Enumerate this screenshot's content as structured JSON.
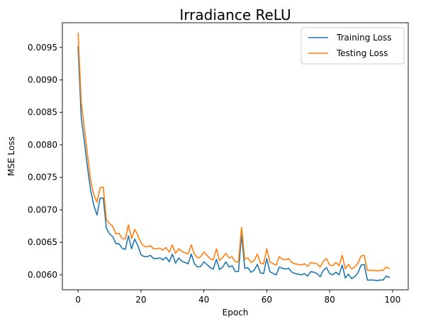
{
  "chart_data": {
    "type": "line",
    "title": "Irradiance ReLU",
    "xlabel": "Epoch",
    "ylabel": "MSE Loss",
    "xlim": [
      -5,
      105
    ],
    "ylim": [
      0.00577,
      0.00988
    ],
    "xticks": [
      0,
      20,
      40,
      60,
      80,
      100
    ],
    "xtick_labels": [
      "0",
      "20",
      "40",
      "60",
      "80",
      "100"
    ],
    "yticks": [
      0.006,
      0.0065,
      0.007,
      0.0075,
      0.008,
      0.0085,
      0.009,
      0.0095
    ],
    "ytick_labels": [
      "0.0060",
      "0.0065",
      "0.0070",
      "0.0075",
      "0.0080",
      "0.0085",
      "0.0090",
      "0.0095"
    ],
    "grid": false,
    "legend_position": "top-right",
    "series": [
      {
        "name": "Training Loss",
        "color": "#1f77b4",
        "x": [
          0,
          1,
          2,
          3,
          4,
          5,
          6,
          7,
          8,
          9,
          10,
          11,
          12,
          13,
          14,
          15,
          16,
          17,
          18,
          19,
          20,
          21,
          22,
          23,
          24,
          25,
          26,
          27,
          28,
          29,
          30,
          31,
          32,
          33,
          34,
          35,
          36,
          37,
          38,
          39,
          40,
          41,
          42,
          43,
          44,
          45,
          46,
          47,
          48,
          49,
          50,
          51,
          52,
          53,
          54,
          55,
          56,
          57,
          58,
          59,
          60,
          61,
          62,
          63,
          64,
          65,
          66,
          67,
          68,
          69,
          70,
          71,
          72,
          73,
          74,
          75,
          76,
          77,
          78,
          79,
          80,
          81,
          82,
          83,
          84,
          85,
          86,
          87,
          88,
          89,
          90,
          91,
          92,
          93,
          94,
          95,
          96,
          97,
          98,
          99
        ],
        "y": [
          0.00951,
          0.00842,
          0.00805,
          0.00765,
          0.0073,
          0.00707,
          0.00692,
          0.00718,
          0.00718,
          0.00672,
          0.00663,
          0.00659,
          0.00648,
          0.00648,
          0.00641,
          0.00639,
          0.0066,
          0.0064,
          0.00655,
          0.00645,
          0.00631,
          0.00628,
          0.00628,
          0.0063,
          0.00625,
          0.00625,
          0.00626,
          0.00623,
          0.00627,
          0.0062,
          0.00632,
          0.00618,
          0.00626,
          0.00621,
          0.00619,
          0.00617,
          0.00632,
          0.00617,
          0.00612,
          0.00613,
          0.0062,
          0.00616,
          0.00611,
          0.00609,
          0.00624,
          0.00608,
          0.00612,
          0.0062,
          0.00612,
          0.00614,
          0.00605,
          0.00605,
          0.00662,
          0.0061,
          0.00611,
          0.00604,
          0.00607,
          0.00616,
          0.00603,
          0.00602,
          0.00625,
          0.00605,
          0.00602,
          0.006,
          0.00612,
          0.0061,
          0.00609,
          0.0061,
          0.00604,
          0.00602,
          0.00601,
          0.006,
          0.00602,
          0.00598,
          0.00605,
          0.00604,
          0.00602,
          0.00597,
          0.00607,
          0.00611,
          0.00602,
          0.006,
          0.00604,
          0.006,
          0.00615,
          0.00595,
          0.00601,
          0.00594,
          0.00597,
          0.00603,
          0.00615,
          0.00616,
          0.00592,
          0.00592,
          0.00592,
          0.00591,
          0.00592,
          0.00592,
          0.00598,
          0.00596
        ]
      },
      {
        "name": "Testing Loss",
        "color": "#ff7f0e",
        "x": [
          0,
          1,
          2,
          3,
          4,
          5,
          6,
          7,
          8,
          9,
          10,
          11,
          12,
          13,
          14,
          15,
          16,
          17,
          18,
          19,
          20,
          21,
          22,
          23,
          24,
          25,
          26,
          27,
          28,
          29,
          30,
          31,
          32,
          33,
          34,
          35,
          36,
          37,
          38,
          39,
          40,
          41,
          42,
          43,
          44,
          45,
          46,
          47,
          48,
          49,
          50,
          51,
          52,
          53,
          54,
          55,
          56,
          57,
          58,
          59,
          60,
          61,
          62,
          63,
          64,
          65,
          66,
          67,
          68,
          69,
          70,
          71,
          72,
          73,
          74,
          75,
          76,
          77,
          78,
          79,
          80,
          81,
          82,
          83,
          84,
          85,
          86,
          87,
          88,
          89,
          90,
          91,
          92,
          93,
          94,
          95,
          96,
          97,
          98,
          99
        ],
        "y": [
          0.00972,
          0.00866,
          0.00825,
          0.00785,
          0.00745,
          0.00723,
          0.00712,
          0.00734,
          0.00735,
          0.00685,
          0.00679,
          0.00675,
          0.00663,
          0.00664,
          0.00656,
          0.00655,
          0.00677,
          0.00656,
          0.0067,
          0.00661,
          0.00649,
          0.00644,
          0.00643,
          0.00645,
          0.0064,
          0.0064,
          0.00641,
          0.00638,
          0.00642,
          0.00635,
          0.00646,
          0.00633,
          0.0064,
          0.00636,
          0.00634,
          0.00632,
          0.00646,
          0.00632,
          0.00626,
          0.00628,
          0.00635,
          0.0063,
          0.00625,
          0.00623,
          0.0064,
          0.00622,
          0.00627,
          0.00633,
          0.00626,
          0.00628,
          0.0062,
          0.0062,
          0.00673,
          0.00624,
          0.00626,
          0.00619,
          0.00622,
          0.00632,
          0.00618,
          0.00617,
          0.0064,
          0.0062,
          0.00617,
          0.00615,
          0.00628,
          0.00624,
          0.00623,
          0.00625,
          0.00619,
          0.00617,
          0.00616,
          0.00615,
          0.00617,
          0.00613,
          0.00619,
          0.00618,
          0.00617,
          0.00612,
          0.00621,
          0.00625,
          0.00615,
          0.00614,
          0.00619,
          0.00614,
          0.0063,
          0.00609,
          0.00616,
          0.00609,
          0.00612,
          0.00618,
          0.00629,
          0.0063,
          0.00607,
          0.00607,
          0.00607,
          0.00606,
          0.00607,
          0.00607,
          0.00612,
          0.0061
        ]
      }
    ]
  }
}
